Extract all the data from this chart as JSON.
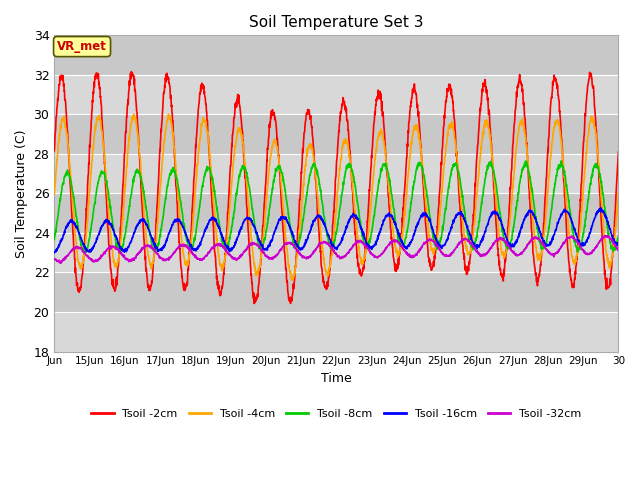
{
  "title": "Soil Temperature Set 3",
  "xlabel": "Time",
  "ylabel": "Soil Temperature (C)",
  "ylim": [
    18,
    34
  ],
  "yticks": [
    18,
    20,
    22,
    24,
    26,
    28,
    30,
    32,
    34
  ],
  "xtick_labels": [
    "Jun",
    "15Jun",
    "16Jun",
    "17Jun",
    "18Jun",
    "19Jun",
    "20Jun",
    "21Jun",
    "22Jun",
    "23Jun",
    "24Jun",
    "25Jun",
    "26Jun",
    "27Jun",
    "28Jun",
    "29Jun",
    "30"
  ],
  "plot_bg_color": "#d8d8d8",
  "grid_color": "#ffffff",
  "band_colors": [
    "#d8d8d8",
    "#c8c8c8"
  ],
  "line_colors": {
    "tsoil_2cm": "#ff0000",
    "tsoil_4cm": "#ffa500",
    "tsoil_8cm": "#00cc00",
    "tsoil_16cm": "#0000ff",
    "tsoil_32cm": "#cc00cc"
  },
  "legend_labels": [
    "Tsoil -2cm",
    "Tsoil -4cm",
    "Tsoil -8cm",
    "Tsoil -16cm",
    "Tsoil -32cm"
  ],
  "watermark": "VR_met",
  "watermark_color": "#cc0000",
  "watermark_bg": "#ffff99",
  "watermark_border": "#555500"
}
